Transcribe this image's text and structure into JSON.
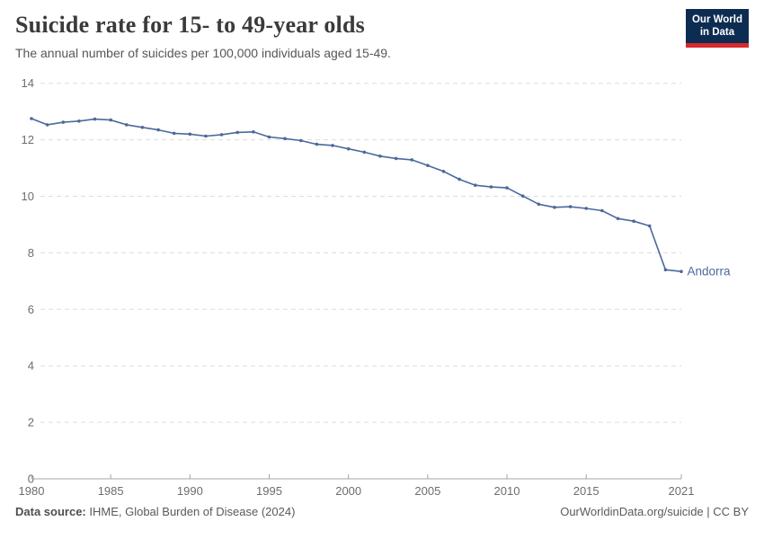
{
  "header": {
    "title": "Suicide rate for 15- to 49-year olds",
    "subtitle": "The annual number of suicides per 100,000 individuals aged 15-49.",
    "logo": {
      "line1": "Our World",
      "line2": "in Data",
      "bg_color": "#0d2c52",
      "accent_color": "#d7292f"
    }
  },
  "footer": {
    "source_label": "Data source:",
    "source_text": " IHME, Global Burden of Disease (2024)",
    "link_text": "OurWorldinData.org/suicide | CC BY"
  },
  "chart_data": {
    "type": "line",
    "title": "Suicide rate for 15- to 49-year olds",
    "xlabel": "",
    "ylabel": "",
    "x": [
      1980,
      1981,
      1982,
      1983,
      1984,
      1985,
      1986,
      1987,
      1988,
      1989,
      1990,
      1991,
      1992,
      1993,
      1994,
      1995,
      1996,
      1997,
      1998,
      1999,
      2000,
      2001,
      2002,
      2003,
      2004,
      2005,
      2006,
      2007,
      2008,
      2009,
      2010,
      2011,
      2012,
      2013,
      2014,
      2015,
      2016,
      2017,
      2018,
      2019,
      2020,
      2021
    ],
    "series": [
      {
        "name": "Andorra",
        "color": "#4b699c",
        "values": [
          12.75,
          12.53,
          12.62,
          12.66,
          12.73,
          12.7,
          12.53,
          12.44,
          12.35,
          12.23,
          12.2,
          12.13,
          12.18,
          12.26,
          12.28,
          12.1,
          12.04,
          11.97,
          11.84,
          11.8,
          11.68,
          11.56,
          11.42,
          11.34,
          11.29,
          11.09,
          10.88,
          10.6,
          10.39,
          10.33,
          10.3,
          10.01,
          9.72,
          9.61,
          9.63,
          9.57,
          9.49,
          9.21,
          9.12,
          8.95,
          7.4,
          7.34
        ]
      }
    ],
    "ylim": [
      0,
      14
    ],
    "yticks": [
      0,
      2,
      4,
      6,
      8,
      10,
      12,
      14
    ],
    "xticks": [
      1980,
      1985,
      1990,
      1995,
      2000,
      2005,
      2010,
      2015,
      2021
    ],
    "grid": "horizontal-dashed",
    "legend_position": "end-of-line-label",
    "end_label": "Andorra"
  }
}
